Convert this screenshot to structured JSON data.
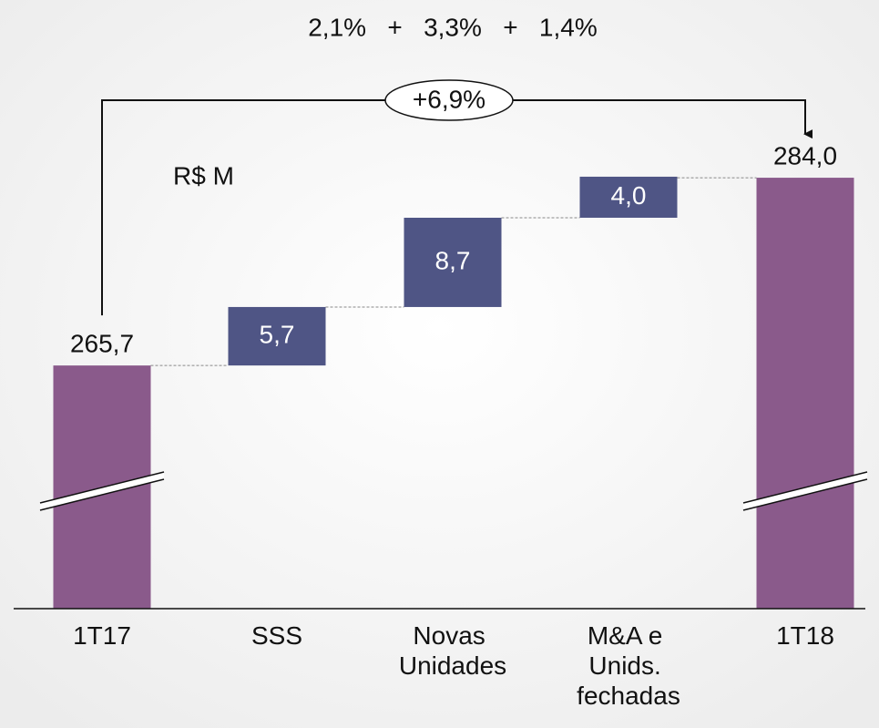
{
  "chart_data": {
    "type": "waterfall",
    "annotations": [
      "2,1%   +   3,3%   +   1,4%"
    ],
    "total_change_label": "+6,9%",
    "unit_label": "R$ M",
    "categories": [
      "1T17",
      "SSS",
      "Novas Unidades",
      "M&A e Unids. fechadas",
      "1T18"
    ],
    "values": [
      265.7,
      5.7,
      8.7,
      4.0,
      284.0
    ],
    "value_labels": [
      "265,7",
      "5,7",
      "8,7",
      "4,0",
      "284,0"
    ],
    "bar_kinds": [
      "total",
      "step",
      "step",
      "step",
      "total"
    ],
    "total_color": "#8a5a8b",
    "step_color": "#4f5585",
    "ylim": [
      242,
      290
    ],
    "axis_break": true
  }
}
